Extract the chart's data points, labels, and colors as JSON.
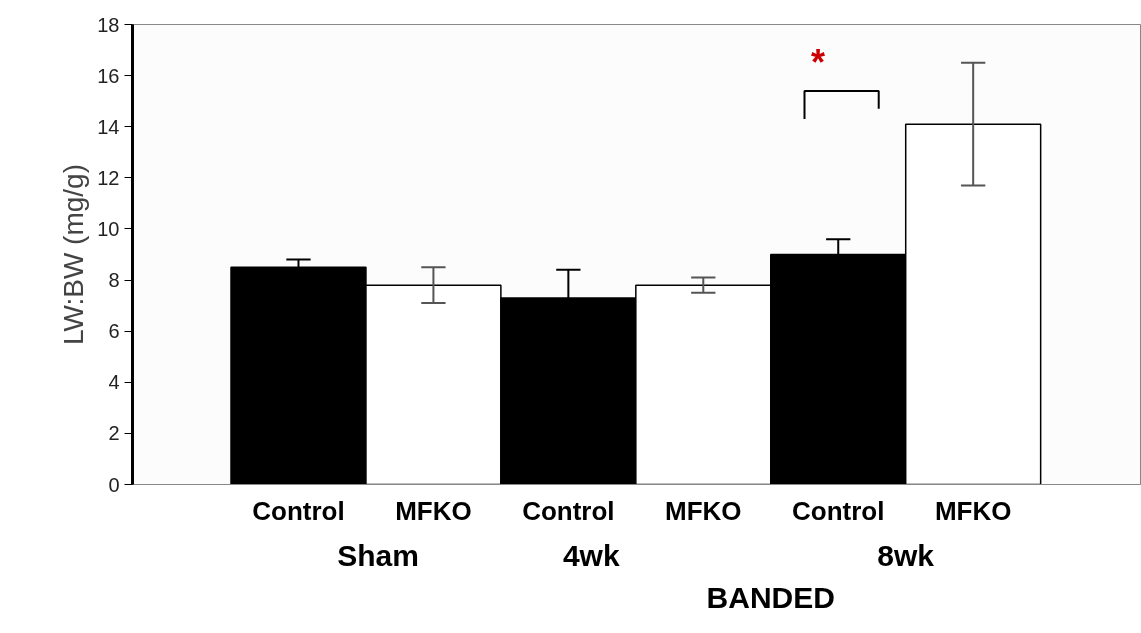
{
  "chart_data": {
    "type": "bar",
    "ylabel": "LW:BW (mg/g)",
    "categories": [
      "Control",
      "MFKO",
      "Control",
      "MFKO",
      "Control",
      "MFKO"
    ],
    "values": [
      8.5,
      7.8,
      7.3,
      7.8,
      9.0,
      14.1
    ],
    "errors": [
      0.3,
      0.7,
      1.1,
      0.3,
      0.6,
      2.4
    ],
    "colors": [
      "#000000",
      "#ffffff",
      "#000000",
      "#ffffff",
      "#000000",
      "#ffffff"
    ],
    "ylim": [
      0,
      18
    ],
    "yticks": [
      0,
      2,
      4,
      6,
      8,
      10,
      12,
      14,
      16,
      18
    ],
    "grid": false,
    "annotations": [
      "Sham",
      "4wk",
      "8wk",
      "BANDED",
      "*"
    ]
  }
}
